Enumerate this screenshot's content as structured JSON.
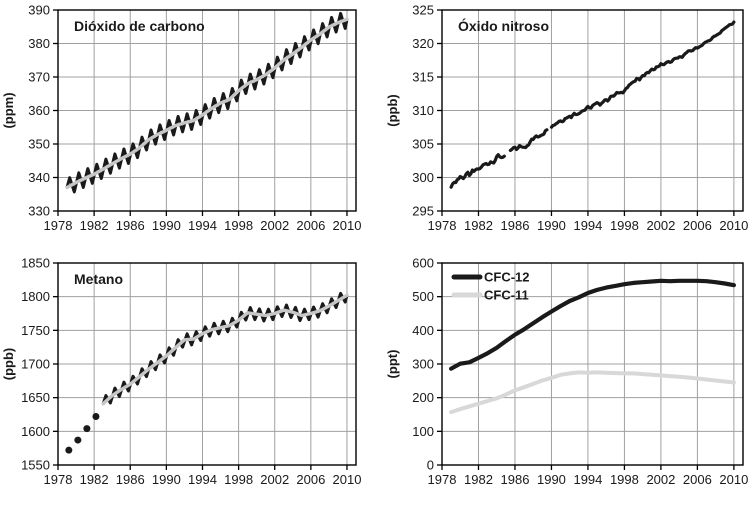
{
  "page": {
    "background": "#ffffff",
    "description": "Cuatro gráficas de concentraciones de gases de efecto invernadero 1978-2010"
  },
  "style": {
    "grid_color": "#a0a0a0",
    "axis_color": "#000000",
    "text_color": "#1a1a1a",
    "black": "#1a1a1a",
    "gray": "#c6c6c6",
    "lightgray": "#d8d8d8"
  },
  "x_axis": {
    "min": 1978,
    "max": 2011,
    "ticks": [
      1978,
      1982,
      1986,
      1990,
      1994,
      1998,
      2002,
      2006,
      2010
    ]
  },
  "chart_data": [
    {
      "id": "co2",
      "type": "line",
      "title": "Dióxido de carbono",
      "ylabel": "(ppm)",
      "ylim": [
        330,
        390
      ],
      "yticks": [
        330,
        340,
        350,
        360,
        370,
        380,
        390
      ],
      "x_start": 1979,
      "x_step": 1,
      "values": [
        337.0,
        338.5,
        339.8,
        341.0,
        342.5,
        344.1,
        345.6,
        347.0,
        348.8,
        351.2,
        352.8,
        354.1,
        355.5,
        356.3,
        357.0,
        358.7,
        360.6,
        362.2,
        363.3,
        365.9,
        368.0,
        369.2,
        370.7,
        372.7,
        375.1,
        376.9,
        378.9,
        381.0,
        382.8,
        384.9,
        386.2,
        387.2
      ],
      "series": [
        {
          "name": "co2-mensual",
          "style": "seasonal",
          "color": "black",
          "width": 3.0,
          "amplitude": 2.5
        },
        {
          "name": "co2-tendencia",
          "style": "smooth",
          "color": "gray",
          "width": 3.4
        }
      ]
    },
    {
      "id": "n2o",
      "type": "line",
      "title": "Óxido nitroso",
      "ylabel": "(ppb)",
      "ylim": [
        295,
        325
      ],
      "yticks": [
        295,
        300,
        305,
        310,
        315,
        320,
        325
      ],
      "x_start": 1979,
      "x_step": 1,
      "values": [
        298.9,
        300.1,
        300.3,
        301.2,
        302.2,
        302.9,
        303.4,
        304.3,
        304.7,
        305.7,
        306.7,
        307.7,
        308.6,
        309.2,
        309.8,
        310.3,
        310.9,
        311.6,
        312.3,
        313.1,
        314.2,
        315.2,
        316.0,
        316.8,
        317.2,
        317.9,
        318.7,
        319.4,
        320.2,
        321.1,
        322.2,
        323.2
      ],
      "gaps": [
        [
          1985.0,
          1985.4
        ],
        [
          1989.6,
          1989.95
        ]
      ],
      "series": [
        {
          "name": "n2o-mensual",
          "style": "noisy",
          "color": "black",
          "width": 3.2,
          "noise": [
            0.55,
            0.12
          ]
        }
      ]
    },
    {
      "id": "ch4",
      "type": "line",
      "title": "Metano",
      "ylabel": "(ppb)",
      "ylim": [
        1550,
        1850
      ],
      "yticks": [
        1550,
        1600,
        1650,
        1700,
        1750,
        1800,
        1850
      ],
      "x_start": 1983,
      "x_step": 1,
      "dots": [
        [
          1979.2,
          1572
        ],
        [
          1980.2,
          1587
        ],
        [
          1981.2,
          1604
        ],
        [
          1982.2,
          1622
        ]
      ],
      "values": [
        1641,
        1653,
        1662,
        1670,
        1681,
        1692,
        1702,
        1712,
        1724,
        1736,
        1737,
        1745,
        1751,
        1754,
        1757,
        1765,
        1776,
        1774,
        1772,
        1775,
        1780,
        1777,
        1772,
        1775,
        1779,
        1786,
        1794,
        1802
      ],
      "series": [
        {
          "name": "ch4-mensual",
          "style": "seasonal",
          "color": "black",
          "width": 3.0,
          "amplitude": 8.5
        },
        {
          "name": "ch4-tendencia",
          "style": "smooth",
          "color": "gray",
          "width": 3.4
        }
      ]
    },
    {
      "id": "cfc",
      "type": "line",
      "title": "",
      "ylabel": "(ppt)",
      "ylim": [
        0,
        600
      ],
      "yticks": [
        0,
        100,
        200,
        300,
        400,
        500,
        600
      ],
      "x_start": 1979,
      "x_step": 1,
      "legend": true,
      "series": [
        {
          "name": "cfc-12",
          "label": "CFC-12",
          "style": "smooth",
          "color": "black",
          "width": 4.2,
          "values": [
            286,
            301,
            305,
            318,
            332,
            348,
            368,
            387,
            403,
            421,
            439,
            456,
            472,
            487,
            498,
            511,
            520,
            527,
            532,
            537,
            541,
            543,
            545,
            547,
            546,
            547,
            547,
            547,
            546,
            543,
            539,
            534
          ]
        },
        {
          "name": "cfc-11",
          "label": "CFC-11",
          "style": "smooth",
          "color": "lightgray",
          "width": 4.0,
          "values": [
            157,
            166,
            174,
            182,
            190,
            198,
            209,
            222,
            231,
            241,
            251,
            259,
            268,
            272,
            275,
            274,
            275,
            274,
            273,
            272,
            272,
            270,
            268,
            266,
            264,
            262,
            260,
            257,
            254,
            251,
            248,
            245
          ]
        }
      ]
    }
  ]
}
